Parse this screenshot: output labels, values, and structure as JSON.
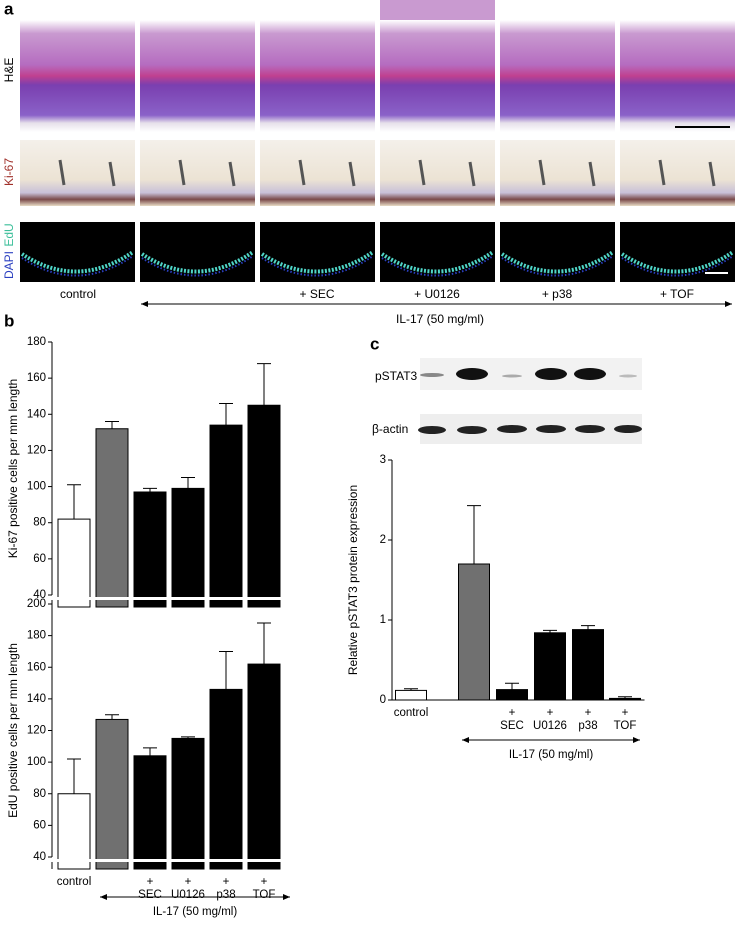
{
  "panel_labels": [
    "a",
    "b",
    "c"
  ],
  "panel_a": {
    "row_labels": [
      "H&E",
      "Ki-67",
      "DAPI",
      "EdU"
    ],
    "column_labels": [
      "control",
      "+ SEC",
      "+ U0126",
      "+ p38",
      "+ TOF"
    ],
    "treatment": "IL-17 (50 mg/ml)"
  },
  "blot": {
    "labels": [
      "pSTAT3",
      "β-actin"
    ]
  },
  "chart_data": [
    {
      "type": "bar",
      "y_label": "Ki-67 positive cells per mm length",
      "values": [
        82,
        132,
        97,
        99,
        134,
        145
      ],
      "errors": [
        19,
        4,
        2,
        6,
        12,
        23
      ],
      "colors": [
        "#ffffff",
        "#707070",
        "#000000",
        "#000000",
        "#000000",
        "#000000"
      ],
      "ylim": [
        40,
        180
      ],
      "yticks": [
        40,
        60,
        80,
        100,
        120,
        140,
        160,
        180
      ]
    },
    {
      "type": "bar",
      "y_label": "EdU positive cells per mm length",
      "categories": [
        "control",
        null,
        [
          "+",
          "SEC"
        ],
        [
          "+",
          "U0126"
        ],
        [
          "+",
          "p38"
        ],
        [
          "+",
          "TOF"
        ]
      ],
      "values": [
        80,
        127,
        104,
        115,
        146,
        162
      ],
      "errors": [
        22,
        3,
        5,
        1,
        24,
        26
      ],
      "colors": [
        "#ffffff",
        "#707070",
        "#000000",
        "#000000",
        "#000000",
        "#000000"
      ],
      "ylim": [
        40,
        200
      ],
      "yticks": [
        40,
        60,
        80,
        100,
        120,
        140,
        160,
        180,
        200
      ],
      "treatment": "IL-17 (50 mg/ml)"
    },
    {
      "type": "bar",
      "y_label": "Relative pSTAT3 protein expression",
      "categories": [
        "control",
        null,
        [
          "+",
          "SEC"
        ],
        [
          "+",
          "U0126"
        ],
        [
          "+",
          "p38"
        ],
        [
          "+",
          "TOF"
        ]
      ],
      "values": [
        0.12,
        1.7,
        0.13,
        0.84,
        0.88,
        0.02
      ],
      "errors": [
        0.02,
        0.73,
        0.08,
        0.03,
        0.05,
        0.02
      ],
      "colors": [
        "#ffffff",
        "#707070",
        "#000000",
        "#000000",
        "#000000",
        "#000000"
      ],
      "ylim": [
        0,
        3
      ],
      "yticks": [
        0,
        1,
        2,
        3
      ],
      "treatment": "IL-17 (50 mg/ml)"
    }
  ]
}
